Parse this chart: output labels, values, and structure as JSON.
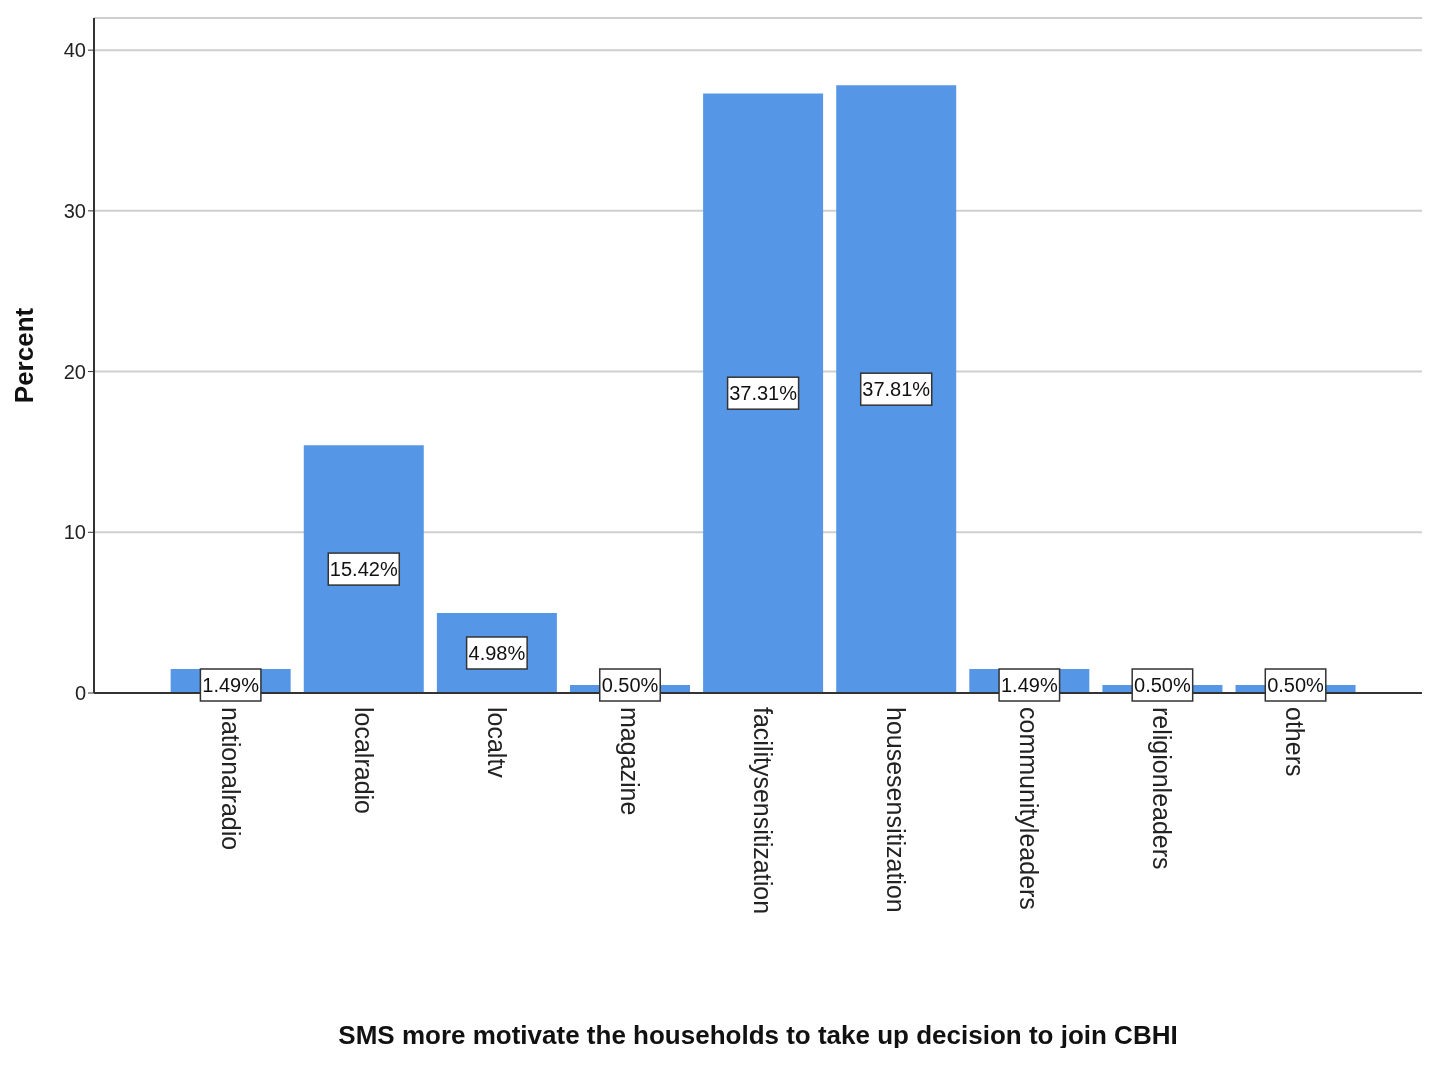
{
  "chart_data": {
    "type": "bar",
    "xlabel": "SMS more motivate the households to take up decision to join CBHI",
    "ylabel": "Percent",
    "categories": [
      "nationalradio",
      "localradio",
      "localtv",
      "magazine",
      "facilitysensitization",
      "housesensitization",
      "communityleaders",
      "religionleaders",
      "others"
    ],
    "values": [
      1.49,
      15.42,
      4.98,
      0.5,
      37.31,
      37.81,
      1.49,
      0.5,
      0.5
    ],
    "value_labels": [
      "1.49%",
      "15.42%",
      "4.98%",
      "0.50%",
      "37.31%",
      "37.81%",
      "1.49%",
      "0.50%",
      "0.50%"
    ],
    "color": "#5596e6",
    "ylim": [
      0,
      42
    ],
    "yticks": [
      0,
      10,
      20,
      30,
      40
    ],
    "grid": "y"
  }
}
